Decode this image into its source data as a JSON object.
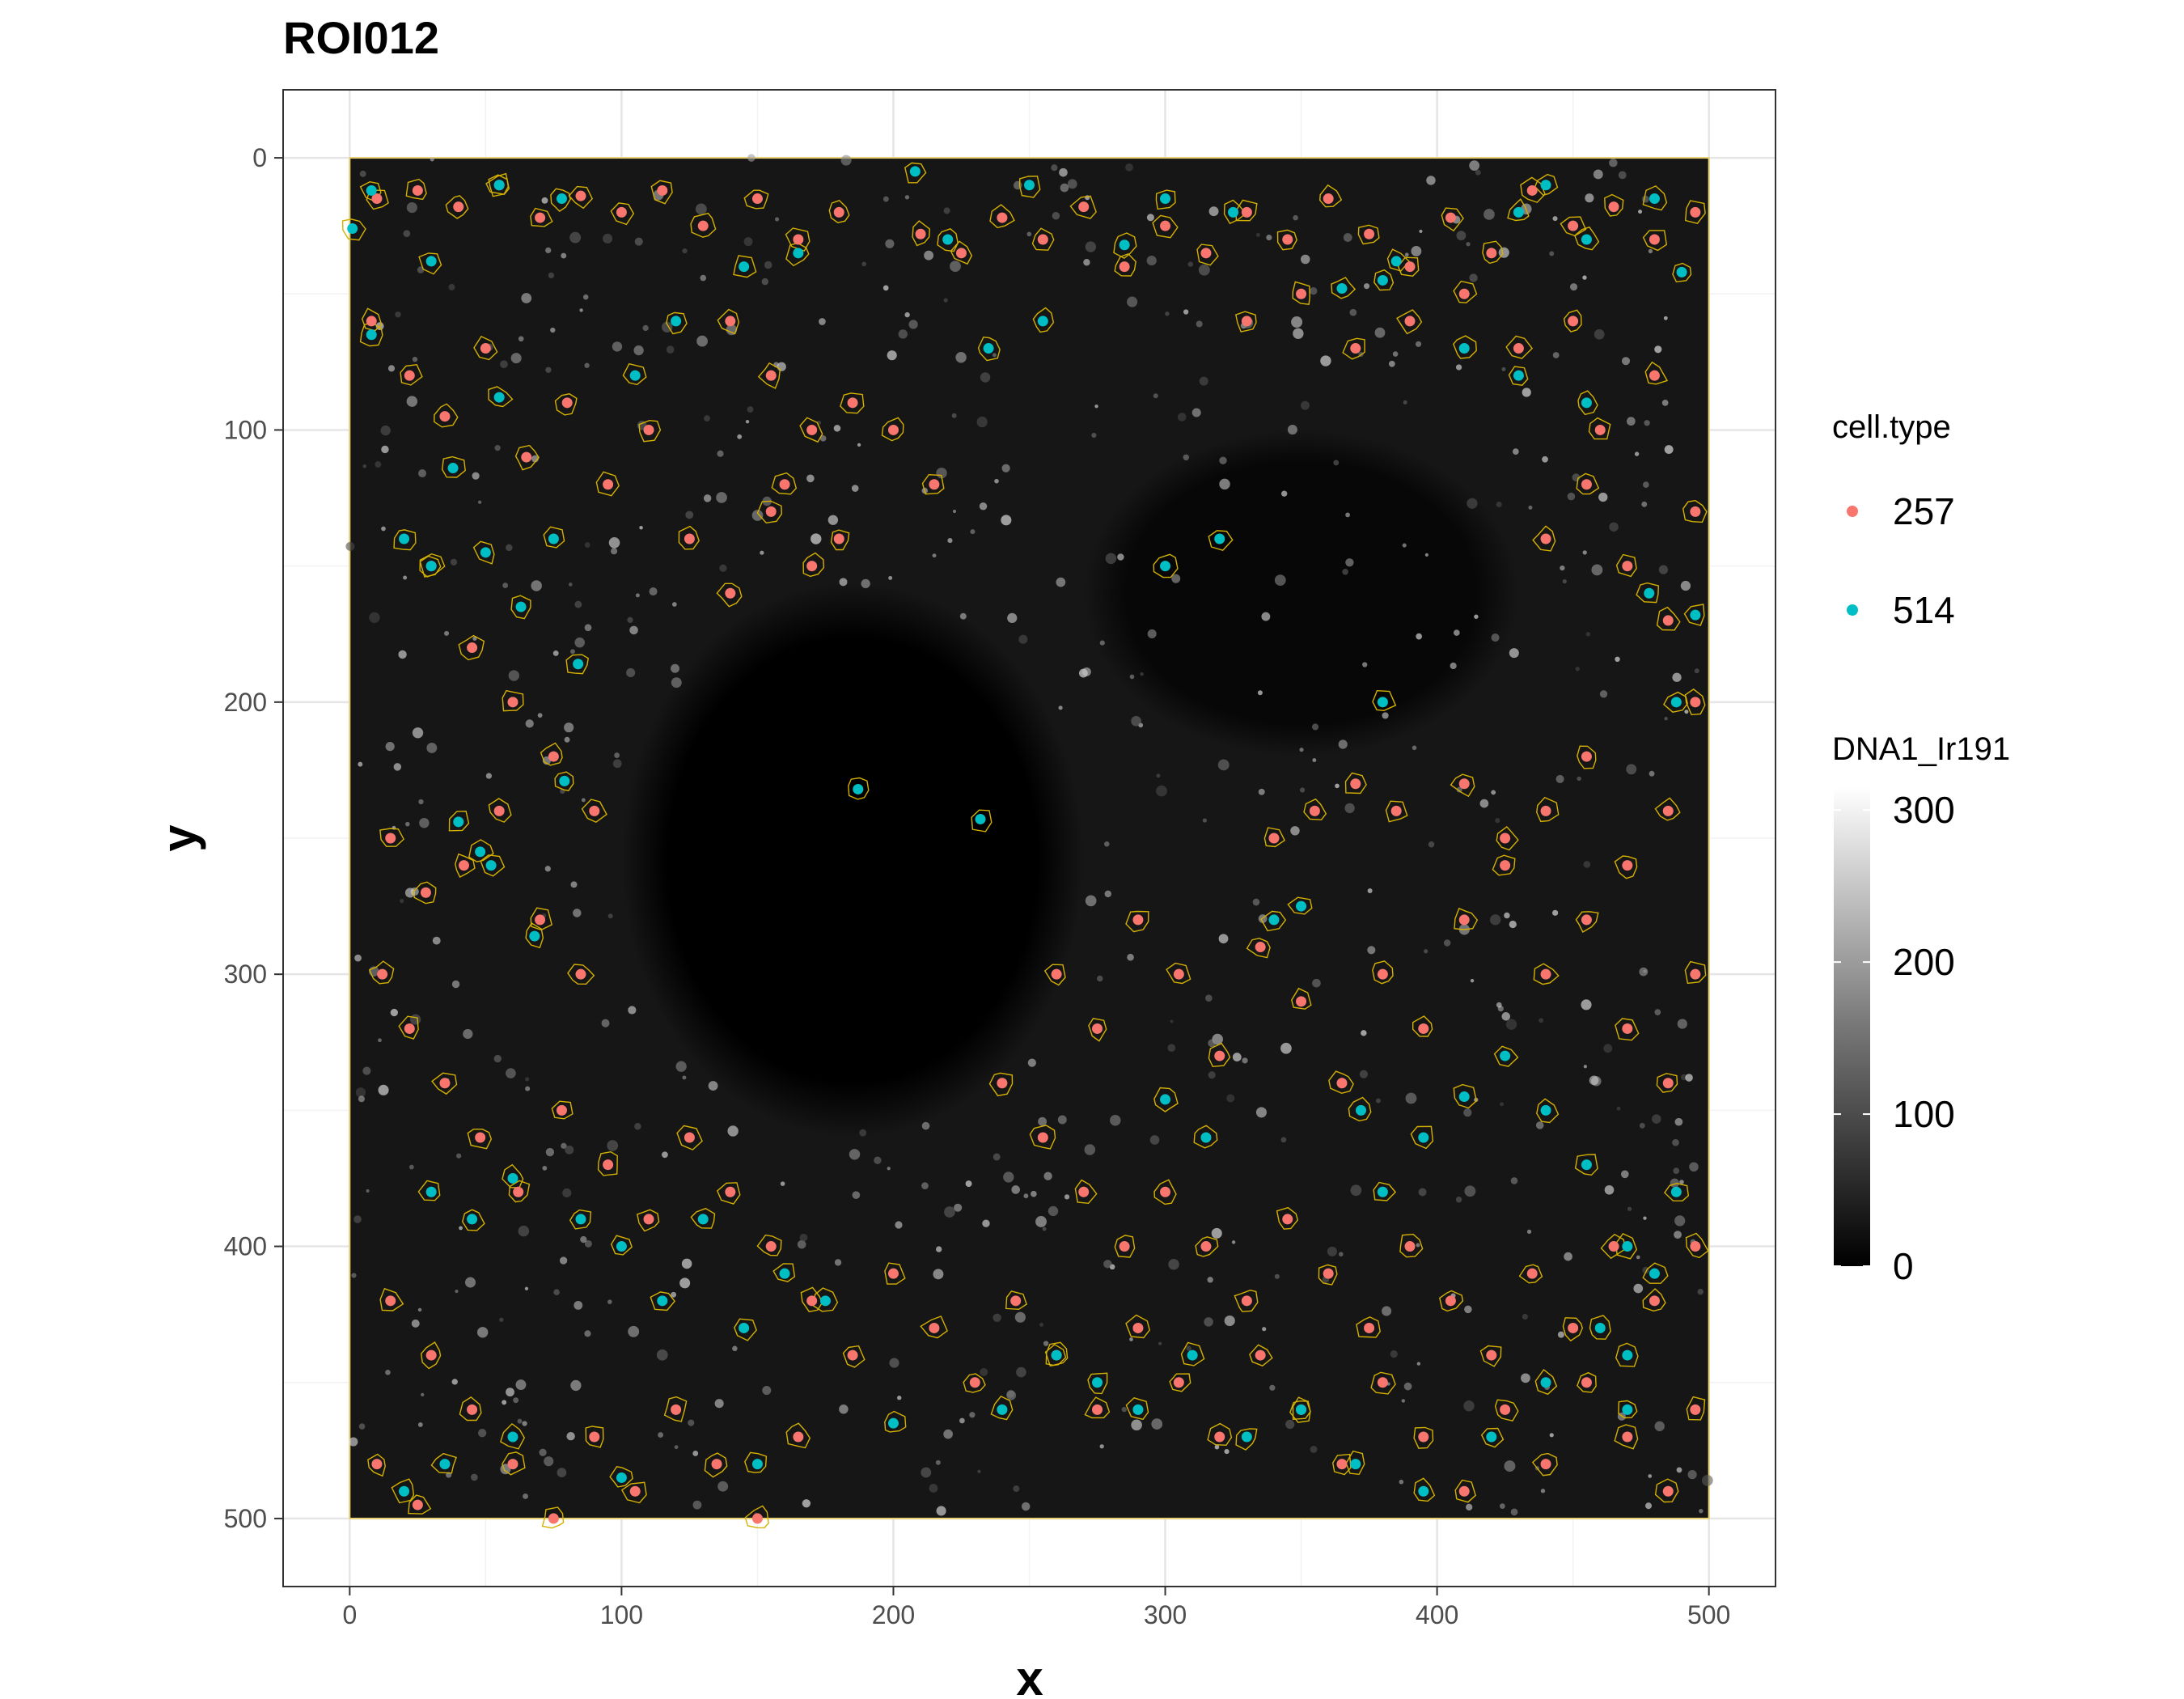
{
  "chart_data": {
    "type": "scatter",
    "title": "ROI012",
    "xlabel": "x",
    "ylabel": "y",
    "xlim": [
      -24.5,
      524.5
    ],
    "ylim": [
      525,
      -25
    ],
    "y_reversed": true,
    "x_ticks": [
      0,
      100,
      200,
      300,
      400,
      500
    ],
    "y_ticks": [
      0,
      100,
      200,
      300,
      400,
      500
    ],
    "x_tick_labels": [
      "0",
      "100",
      "200",
      "300",
      "400",
      "500"
    ],
    "y_tick_labels": [
      "0",
      "100",
      "200",
      "300",
      "400",
      "500"
    ],
    "grid": true,
    "legend_position": "right",
    "background_image": {
      "channel": "DNA1_Ir191",
      "extent": [
        0,
        500,
        0,
        500
      ],
      "colorscale": "black-to-white",
      "range": [
        0,
        300
      ]
    },
    "mask_outline_color": "#D4B000",
    "color_legend": {
      "title": "cell.type",
      "entries": [
        {
          "label": "257",
          "color": "#F8766D"
        },
        {
          "label": "514",
          "color": "#00BFC4"
        }
      ]
    },
    "gradient_legend": {
      "title": "DNA1_Ir191",
      "ticks": [
        0,
        100,
        200,
        300
      ],
      "tick_labels": [
        "0",
        "100",
        "200",
        "300"
      ],
      "range": [
        0,
        315
      ]
    },
    "series": [
      {
        "name": "257",
        "color": "#F8766D",
        "points": [
          [
            10,
            15
          ],
          [
            25,
            12
          ],
          [
            40,
            18
          ],
          [
            55,
            10
          ],
          [
            70,
            22
          ],
          [
            85,
            14
          ],
          [
            100,
            20
          ],
          [
            115,
            12
          ],
          [
            130,
            25
          ],
          [
            150,
            15
          ],
          [
            165,
            30
          ],
          [
            180,
            20
          ],
          [
            210,
            28
          ],
          [
            225,
            35
          ],
          [
            240,
            22
          ],
          [
            255,
            30
          ],
          [
            270,
            18
          ],
          [
            285,
            40
          ],
          [
            300,
            25
          ],
          [
            315,
            35
          ],
          [
            330,
            20
          ],
          [
            345,
            30
          ],
          [
            360,
            15
          ],
          [
            375,
            28
          ],
          [
            390,
            40
          ],
          [
            405,
            22
          ],
          [
            420,
            35
          ],
          [
            435,
            12
          ],
          [
            450,
            25
          ],
          [
            465,
            18
          ],
          [
            480,
            30
          ],
          [
            495,
            20
          ],
          [
            8,
            60
          ],
          [
            22,
            80
          ],
          [
            35,
            95
          ],
          [
            50,
            70
          ],
          [
            65,
            110
          ],
          [
            80,
            90
          ],
          [
            95,
            120
          ],
          [
            110,
            100
          ],
          [
            125,
            140
          ],
          [
            140,
            160
          ],
          [
            155,
            130
          ],
          [
            30,
            150
          ],
          [
            45,
            180
          ],
          [
            60,
            200
          ],
          [
            75,
            220
          ],
          [
            90,
            240
          ],
          [
            15,
            250
          ],
          [
            28,
            270
          ],
          [
            42,
            260
          ],
          [
            55,
            240
          ],
          [
            70,
            280
          ],
          [
            85,
            300
          ],
          [
            12,
            300
          ],
          [
            22,
            320
          ],
          [
            35,
            340
          ],
          [
            48,
            360
          ],
          [
            62,
            380
          ],
          [
            78,
            350
          ],
          [
            95,
            370
          ],
          [
            110,
            390
          ],
          [
            125,
            360
          ],
          [
            140,
            380
          ],
          [
            155,
            400
          ],
          [
            170,
            420
          ],
          [
            185,
            440
          ],
          [
            200,
            410
          ],
          [
            215,
            430
          ],
          [
            230,
            450
          ],
          [
            245,
            420
          ],
          [
            260,
            440
          ],
          [
            275,
            460
          ],
          [
            290,
            430
          ],
          [
            305,
            450
          ],
          [
            320,
            470
          ],
          [
            335,
            440
          ],
          [
            350,
            460
          ],
          [
            365,
            480
          ],
          [
            380,
            450
          ],
          [
            395,
            470
          ],
          [
            410,
            490
          ],
          [
            425,
            460
          ],
          [
            440,
            480
          ],
          [
            455,
            450
          ],
          [
            470,
            470
          ],
          [
            485,
            490
          ],
          [
            495,
            460
          ],
          [
            15,
            420
          ],
          [
            30,
            440
          ],
          [
            45,
            460
          ],
          [
            60,
            480
          ],
          [
            75,
            500
          ],
          [
            90,
            470
          ],
          [
            105,
            490
          ],
          [
            120,
            460
          ],
          [
            135,
            480
          ],
          [
            150,
            500
          ],
          [
            165,
            470
          ],
          [
            10,
            480
          ],
          [
            25,
            495
          ],
          [
            260,
            300
          ],
          [
            275,
            320
          ],
          [
            290,
            280
          ],
          [
            305,
            300
          ],
          [
            320,
            330
          ],
          [
            335,
            290
          ],
          [
            350,
            310
          ],
          [
            365,
            340
          ],
          [
            380,
            300
          ],
          [
            395,
            320
          ],
          [
            410,
            280
          ],
          [
            425,
            260
          ],
          [
            440,
            300
          ],
          [
            455,
            280
          ],
          [
            470,
            320
          ],
          [
            485,
            340
          ],
          [
            495,
            300
          ],
          [
            410,
            230
          ],
          [
            425,
            250
          ],
          [
            440,
            240
          ],
          [
            455,
            220
          ],
          [
            470,
            260
          ],
          [
            485,
            240
          ],
          [
            495,
            200
          ],
          [
            440,
            140
          ],
          [
            455,
            120
          ],
          [
            470,
            150
          ],
          [
            485,
            170
          ],
          [
            495,
            130
          ],
          [
            460,
            100
          ],
          [
            480,
            80
          ],
          [
            450,
            60
          ],
          [
            430,
            70
          ],
          [
            410,
            50
          ],
          [
            390,
            60
          ],
          [
            370,
            70
          ],
          [
            350,
            50
          ],
          [
            330,
            60
          ],
          [
            240,
            340
          ],
          [
            255,
            360
          ],
          [
            270,
            380
          ],
          [
            285,
            400
          ],
          [
            300,
            380
          ],
          [
            315,
            400
          ],
          [
            330,
            420
          ],
          [
            345,
            390
          ],
          [
            360,
            410
          ],
          [
            375,
            430
          ],
          [
            390,
            400
          ],
          [
            405,
            420
          ],
          [
            420,
            440
          ],
          [
            435,
            410
          ],
          [
            450,
            430
          ],
          [
            465,
            400
          ],
          [
            480,
            420
          ],
          [
            495,
            400
          ],
          [
            340,
            250
          ],
          [
            355,
            240
          ],
          [
            370,
            230
          ],
          [
            385,
            240
          ],
          [
            140,
            60
          ],
          [
            155,
            80
          ],
          [
            170,
            100
          ],
          [
            185,
            90
          ],
          [
            200,
            100
          ],
          [
            215,
            120
          ],
          [
            170,
            150
          ],
          [
            180,
            140
          ],
          [
            160,
            120
          ]
        ]
      },
      {
        "name": "514",
        "color": "#00BFC4",
        "points": [
          [
            1,
            26
          ],
          [
            8,
            12
          ],
          [
            30,
            38
          ],
          [
            55,
            10
          ],
          [
            78,
            15
          ],
          [
            105,
            80
          ],
          [
            120,
            60
          ],
          [
            145,
            40
          ],
          [
            165,
            35
          ],
          [
            208,
            5
          ],
          [
            220,
            30
          ],
          [
            250,
            10
          ],
          [
            285,
            32
          ],
          [
            300,
            15
          ],
          [
            325,
            20
          ],
          [
            365,
            48
          ],
          [
            380,
            45
          ],
          [
            385,
            38
          ],
          [
            430,
            20
          ],
          [
            440,
            10
          ],
          [
            455,
            30
          ],
          [
            480,
            15
          ],
          [
            490,
            42
          ],
          [
            8,
            65
          ],
          [
            20,
            140
          ],
          [
            30,
            150
          ],
          [
            38,
            114
          ],
          [
            50,
            145
          ],
          [
            55,
            88
          ],
          [
            63,
            165
          ],
          [
            75,
            140
          ],
          [
            84,
            186
          ],
          [
            40,
            244
          ],
          [
            48,
            255
          ],
          [
            52,
            260
          ],
          [
            68,
            286
          ],
          [
            79,
            229
          ],
          [
            187,
            232
          ],
          [
            232,
            243
          ],
          [
            30,
            380
          ],
          [
            45,
            390
          ],
          [
            60,
            375
          ],
          [
            85,
            390
          ],
          [
            100,
            400
          ],
          [
            115,
            420
          ],
          [
            130,
            390
          ],
          [
            145,
            430
          ],
          [
            160,
            410
          ],
          [
            175,
            420
          ],
          [
            200,
            465
          ],
          [
            240,
            460
          ],
          [
            260,
            440
          ],
          [
            275,
            450
          ],
          [
            290,
            460
          ],
          [
            310,
            440
          ],
          [
            330,
            470
          ],
          [
            350,
            460
          ],
          [
            370,
            480
          ],
          [
            395,
            490
          ],
          [
            420,
            470
          ],
          [
            440,
            450
          ],
          [
            460,
            430
          ],
          [
            480,
            410
          ],
          [
            20,
            490
          ],
          [
            35,
            480
          ],
          [
            60,
            470
          ],
          [
            100,
            485
          ],
          [
            150,
            480
          ],
          [
            300,
            346
          ],
          [
            315,
            360
          ],
          [
            340,
            280
          ],
          [
            350,
            275
          ],
          [
            372,
            350
          ],
          [
            380,
            380
          ],
          [
            395,
            360
          ],
          [
            410,
            345
          ],
          [
            425,
            330
          ],
          [
            440,
            350
          ],
          [
            455,
            370
          ],
          [
            470,
            400
          ],
          [
            488,
            380
          ],
          [
            470,
            440
          ],
          [
            470,
            460
          ],
          [
            410,
            70
          ],
          [
            430,
            80
          ],
          [
            455,
            90
          ],
          [
            478,
            160
          ],
          [
            488,
            200
          ],
          [
            495,
            168
          ],
          [
            380,
            200
          ],
          [
            320,
            140
          ],
          [
            300,
            150
          ],
          [
            255,
            60
          ],
          [
            235,
            70
          ]
        ]
      }
    ]
  }
}
